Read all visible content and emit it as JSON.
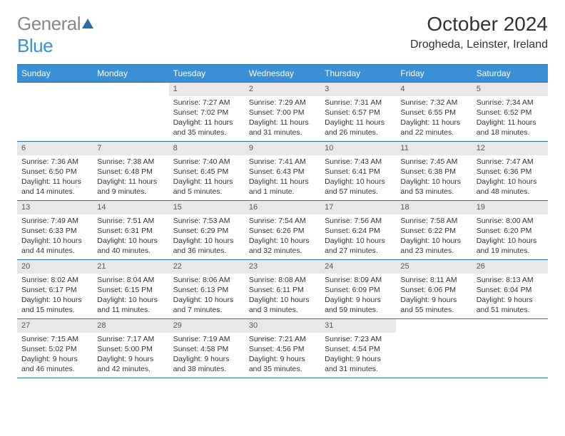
{
  "brand": {
    "name_a": "General",
    "name_b": "Blue"
  },
  "title": "October 2024",
  "location": "Drogheda, Leinster, Ireland",
  "colors": {
    "header_bg": "#3b8fd4",
    "rule": "#2a6fa8",
    "daynum_bg": "#e8e8e8",
    "text": "#333333"
  },
  "day_labels": [
    "Sunday",
    "Monday",
    "Tuesday",
    "Wednesday",
    "Thursday",
    "Friday",
    "Saturday"
  ],
  "weeks": [
    [
      {
        "blank": true
      },
      {
        "blank": true
      },
      {
        "n": "1",
        "sr": "7:27 AM",
        "ss": "7:02 PM",
        "dl": "11 hours and 35 minutes."
      },
      {
        "n": "2",
        "sr": "7:29 AM",
        "ss": "7:00 PM",
        "dl": "11 hours and 31 minutes."
      },
      {
        "n": "3",
        "sr": "7:31 AM",
        "ss": "6:57 PM",
        "dl": "11 hours and 26 minutes."
      },
      {
        "n": "4",
        "sr": "7:32 AM",
        "ss": "6:55 PM",
        "dl": "11 hours and 22 minutes."
      },
      {
        "n": "5",
        "sr": "7:34 AM",
        "ss": "6:52 PM",
        "dl": "11 hours and 18 minutes."
      }
    ],
    [
      {
        "n": "6",
        "sr": "7:36 AM",
        "ss": "6:50 PM",
        "dl": "11 hours and 14 minutes."
      },
      {
        "n": "7",
        "sr": "7:38 AM",
        "ss": "6:48 PM",
        "dl": "11 hours and 9 minutes."
      },
      {
        "n": "8",
        "sr": "7:40 AM",
        "ss": "6:45 PM",
        "dl": "11 hours and 5 minutes."
      },
      {
        "n": "9",
        "sr": "7:41 AM",
        "ss": "6:43 PM",
        "dl": "11 hours and 1 minute."
      },
      {
        "n": "10",
        "sr": "7:43 AM",
        "ss": "6:41 PM",
        "dl": "10 hours and 57 minutes."
      },
      {
        "n": "11",
        "sr": "7:45 AM",
        "ss": "6:38 PM",
        "dl": "10 hours and 53 minutes."
      },
      {
        "n": "12",
        "sr": "7:47 AM",
        "ss": "6:36 PM",
        "dl": "10 hours and 48 minutes."
      }
    ],
    [
      {
        "n": "13",
        "sr": "7:49 AM",
        "ss": "6:33 PM",
        "dl": "10 hours and 44 minutes."
      },
      {
        "n": "14",
        "sr": "7:51 AM",
        "ss": "6:31 PM",
        "dl": "10 hours and 40 minutes."
      },
      {
        "n": "15",
        "sr": "7:53 AM",
        "ss": "6:29 PM",
        "dl": "10 hours and 36 minutes."
      },
      {
        "n": "16",
        "sr": "7:54 AM",
        "ss": "6:26 PM",
        "dl": "10 hours and 32 minutes."
      },
      {
        "n": "17",
        "sr": "7:56 AM",
        "ss": "6:24 PM",
        "dl": "10 hours and 27 minutes."
      },
      {
        "n": "18",
        "sr": "7:58 AM",
        "ss": "6:22 PM",
        "dl": "10 hours and 23 minutes."
      },
      {
        "n": "19",
        "sr": "8:00 AM",
        "ss": "6:20 PM",
        "dl": "10 hours and 19 minutes."
      }
    ],
    [
      {
        "n": "20",
        "sr": "8:02 AM",
        "ss": "6:17 PM",
        "dl": "10 hours and 15 minutes."
      },
      {
        "n": "21",
        "sr": "8:04 AM",
        "ss": "6:15 PM",
        "dl": "10 hours and 11 minutes."
      },
      {
        "n": "22",
        "sr": "8:06 AM",
        "ss": "6:13 PM",
        "dl": "10 hours and 7 minutes."
      },
      {
        "n": "23",
        "sr": "8:08 AM",
        "ss": "6:11 PM",
        "dl": "10 hours and 3 minutes."
      },
      {
        "n": "24",
        "sr": "8:09 AM",
        "ss": "6:09 PM",
        "dl": "9 hours and 59 minutes."
      },
      {
        "n": "25",
        "sr": "8:11 AM",
        "ss": "6:06 PM",
        "dl": "9 hours and 55 minutes."
      },
      {
        "n": "26",
        "sr": "8:13 AM",
        "ss": "6:04 PM",
        "dl": "9 hours and 51 minutes."
      }
    ],
    [
      {
        "n": "27",
        "sr": "7:15 AM",
        "ss": "5:02 PM",
        "dl": "9 hours and 46 minutes."
      },
      {
        "n": "28",
        "sr": "7:17 AM",
        "ss": "5:00 PM",
        "dl": "9 hours and 42 minutes."
      },
      {
        "n": "29",
        "sr": "7:19 AM",
        "ss": "4:58 PM",
        "dl": "9 hours and 38 minutes."
      },
      {
        "n": "30",
        "sr": "7:21 AM",
        "ss": "4:56 PM",
        "dl": "9 hours and 35 minutes."
      },
      {
        "n": "31",
        "sr": "7:23 AM",
        "ss": "4:54 PM",
        "dl": "9 hours and 31 minutes."
      },
      {
        "blank": true
      },
      {
        "blank": true
      }
    ]
  ],
  "labels": {
    "sunrise": "Sunrise:",
    "sunset": "Sunset:",
    "daylight": "Daylight:"
  }
}
